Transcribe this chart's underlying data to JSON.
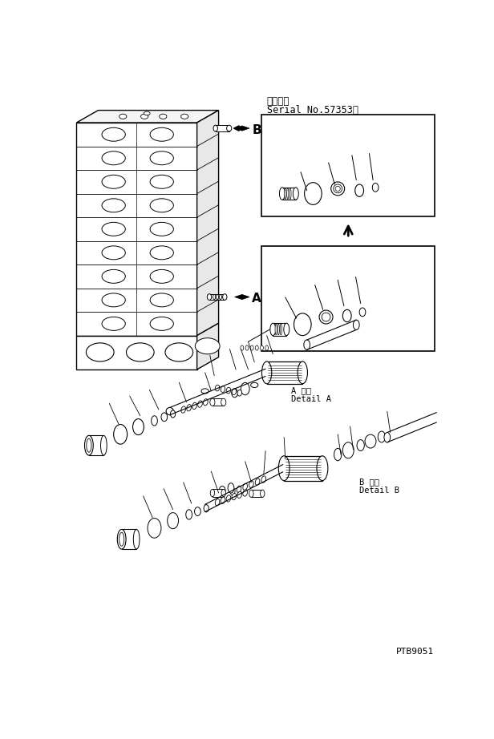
{
  "bg_color": "#ffffff",
  "lc": "#000000",
  "title_line1": "適用号機",
  "title_line2": "Serial No.57353～",
  "label_a": "A",
  "label_b": "B",
  "detail_a_label": "A 詳細",
  "detail_a_sub": "Detail A",
  "detail_b_label": "B 詳細",
  "detail_b_sub": "Detail B",
  "part_number": "PTB9051",
  "fig_width": 6.16,
  "fig_height": 9.22,
  "dpi": 100
}
